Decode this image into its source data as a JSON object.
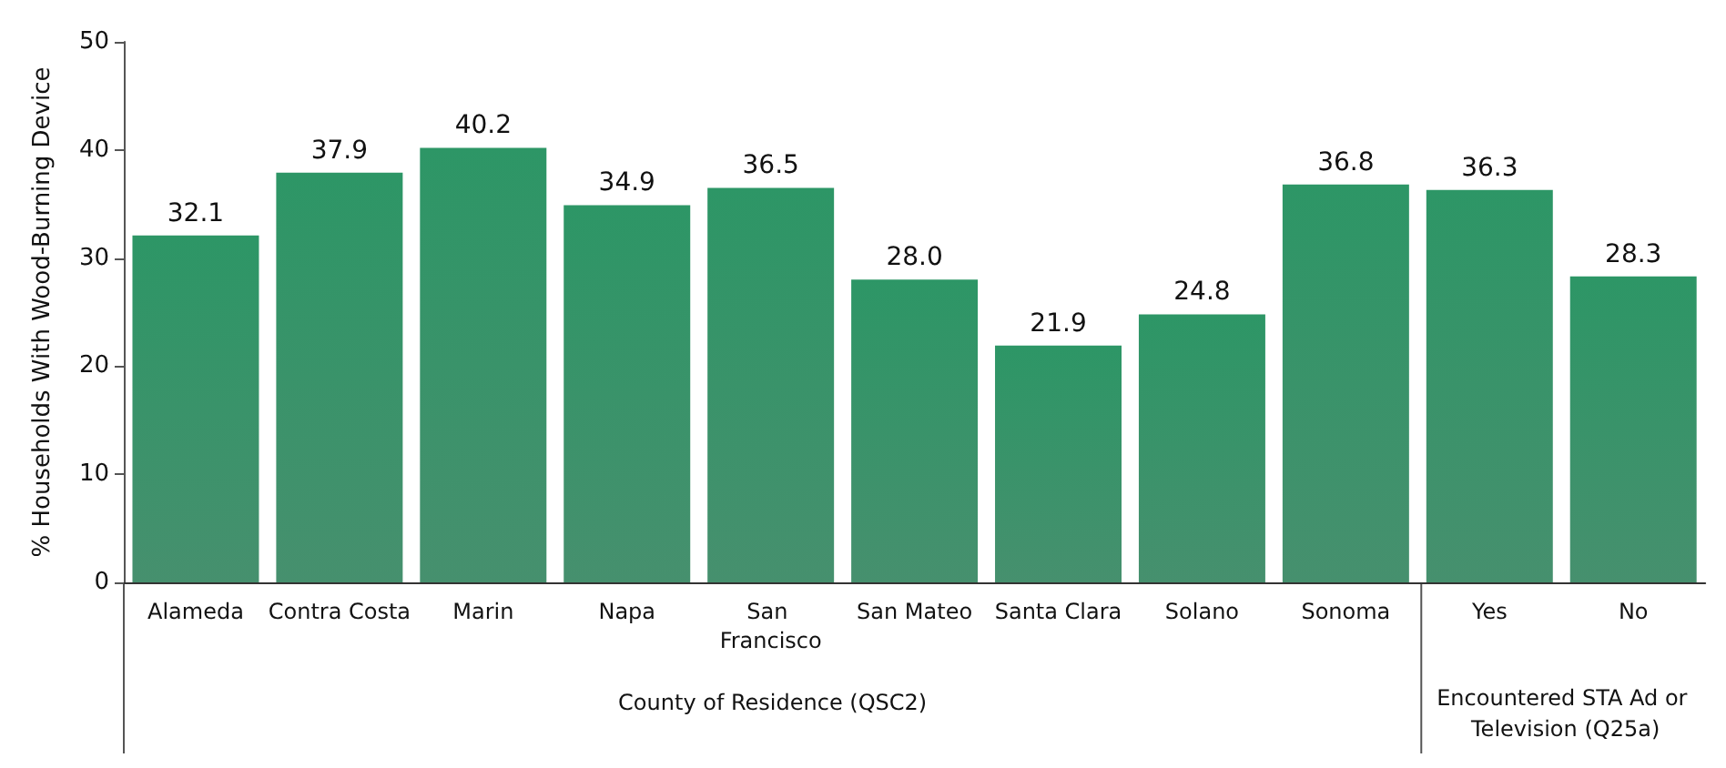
{
  "chart_data": {
    "type": "bar",
    "ylabel": "% Households With Wood-Burning Device",
    "categories": [
      "Alameda",
      "Contra Costa",
      "Marin",
      "Napa",
      "San Francisco",
      "San Mateo",
      "Santa Clara",
      "Solano",
      "Sonoma",
      "Yes",
      "No"
    ],
    "values": [
      32.1,
      37.9,
      40.2,
      34.9,
      36.5,
      28.0,
      21.9,
      24.8,
      36.8,
      36.3,
      28.3
    ],
    "value_labels": [
      "32.1",
      "37.9",
      "40.2",
      "34.9",
      "36.5",
      "28.0",
      "21.9",
      "24.8",
      "36.8",
      "36.3",
      "28.3"
    ],
    "color": "#267d55",
    "ylim": [
      0,
      50
    ],
    "yticks": [
      0,
      10,
      20,
      30,
      40,
      50
    ],
    "grid": false,
    "annotations": [
      "County of Residence (QSC2)",
      "Encountered STA Ad or Television (Q25a)"
    ]
  }
}
